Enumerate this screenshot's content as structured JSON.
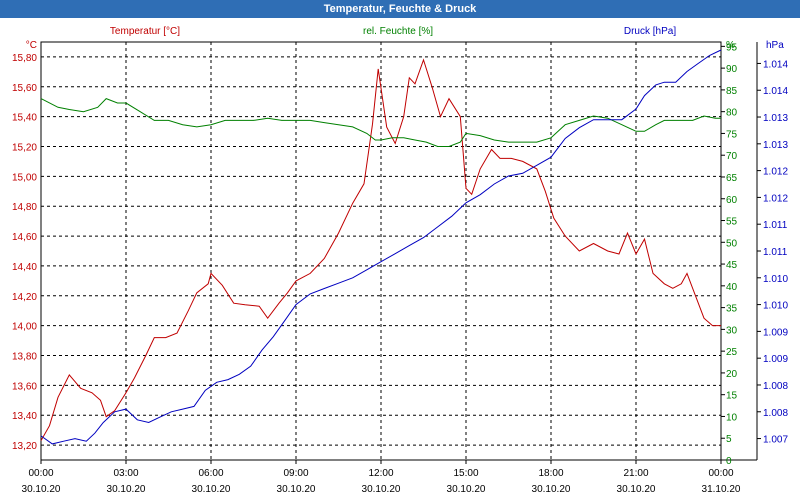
{
  "title": "Temperatur, Feuchte & Druck",
  "colors": {
    "temperature": "#c00000",
    "humidity": "#008000",
    "pressure": "#0000c0",
    "titlebar": "#2f6eb5"
  },
  "chart_data": {
    "type": "line",
    "title": "Temperatur, Feuchte & Druck",
    "legend": {
      "temperature": "Temperatur [°C]",
      "humidity": "rel. Feuchte [%]",
      "pressure": "Druck [hPa]"
    },
    "units": {
      "left": "°C",
      "right1": "%",
      "right2": "hPa"
    },
    "x_range_hours": [
      0,
      24
    ],
    "x_ticks": [
      {
        "t": 0,
        "time": "00:00",
        "date": "30.10.20"
      },
      {
        "t": 3,
        "time": "03:00",
        "date": "30.10.20"
      },
      {
        "t": 6,
        "time": "06:00",
        "date": "30.10.20"
      },
      {
        "t": 9,
        "time": "09:00",
        "date": "30.10.20"
      },
      {
        "t": 12,
        "time": "12:00",
        "date": "30.10.20"
      },
      {
        "t": 15,
        "time": "15:00",
        "date": "30.10.20"
      },
      {
        "t": 18,
        "time": "18:00",
        "date": "30.10.20"
      },
      {
        "t": 21,
        "time": "21:00",
        "date": "30.10.20"
      },
      {
        "t": 24,
        "time": "00:00",
        "date": "31.10.20"
      }
    ],
    "temp_axis": {
      "min": 13.1,
      "max": 15.9,
      "ticks": [
        13.2,
        13.4,
        13.6,
        13.8,
        14.0,
        14.2,
        14.4,
        14.6,
        14.8,
        15.0,
        15.2,
        15.4,
        15.6,
        15.8
      ],
      "labels": [
        "13,20",
        "13,40",
        "13,60",
        "13,80",
        "14,00",
        "14,20",
        "14,40",
        "14,60",
        "14,80",
        "15,00",
        "15,20",
        "15,40",
        "15,60",
        "15,80"
      ]
    },
    "hum_axis": {
      "min": 0,
      "max": 96,
      "ticks": [
        0,
        5,
        10,
        15,
        20,
        25,
        30,
        35,
        40,
        45,
        50,
        55,
        60,
        65,
        70,
        75,
        80,
        85,
        90,
        95
      ],
      "labels": [
        "0",
        "5",
        "10",
        "15",
        "20",
        "25",
        "30",
        "35",
        "40",
        "45",
        "50",
        "55",
        "60",
        "65",
        "70",
        "75",
        "80",
        "85",
        "90",
        "95"
      ]
    },
    "press_axis": {
      "min": 1006.6,
      "max": 1014.4,
      "ticks": [
        1007.0,
        1007.5,
        1008.0,
        1008.5,
        1009.0,
        1009.5,
        1010.0,
        1010.5,
        1011.0,
        1011.5,
        1012.0,
        1012.5,
        1013.0,
        1013.5,
        1014.0
      ],
      "labels": [
        "1.007",
        "1.008",
        "1.008",
        "1.009",
        "1.009",
        "1.010",
        "1.010",
        "1.011",
        "1.011",
        "1.012",
        "1.012",
        "1.013",
        "1.013",
        "1.014",
        "1.014"
      ]
    },
    "series": [
      {
        "name": "Temperatur [°C]",
        "key": "temperature",
        "axis": "temp",
        "data": [
          [
            0,
            13.23
          ],
          [
            0.3,
            13.33
          ],
          [
            0.6,
            13.52
          ],
          [
            1.0,
            13.67
          ],
          [
            1.4,
            13.58
          ],
          [
            1.8,
            13.55
          ],
          [
            2.1,
            13.5
          ],
          [
            2.3,
            13.39
          ],
          [
            2.6,
            13.43
          ],
          [
            3.0,
            13.55
          ],
          [
            3.3,
            13.65
          ],
          [
            3.7,
            13.8
          ],
          [
            4.0,
            13.92
          ],
          [
            4.4,
            13.92
          ],
          [
            4.8,
            13.95
          ],
          [
            5.2,
            14.1
          ],
          [
            5.5,
            14.22
          ],
          [
            5.9,
            14.28
          ],
          [
            6.0,
            14.35
          ],
          [
            6.4,
            14.27
          ],
          [
            6.8,
            14.15
          ],
          [
            7.2,
            14.14
          ],
          [
            7.7,
            14.13
          ],
          [
            8.0,
            14.05
          ],
          [
            8.4,
            14.15
          ],
          [
            8.7,
            14.22
          ],
          [
            9.0,
            14.3
          ],
          [
            9.5,
            14.35
          ],
          [
            10.0,
            14.45
          ],
          [
            10.5,
            14.62
          ],
          [
            11.0,
            14.82
          ],
          [
            11.4,
            14.95
          ],
          [
            11.7,
            15.35
          ],
          [
            11.9,
            15.72
          ],
          [
            12.2,
            15.33
          ],
          [
            12.5,
            15.22
          ],
          [
            12.8,
            15.4
          ],
          [
            13.0,
            15.66
          ],
          [
            13.2,
            15.62
          ],
          [
            13.5,
            15.78
          ],
          [
            13.8,
            15.6
          ],
          [
            14.1,
            15.4
          ],
          [
            14.4,
            15.52
          ],
          [
            14.8,
            15.4
          ],
          [
            15.0,
            14.92
          ],
          [
            15.2,
            14.88
          ],
          [
            15.5,
            15.05
          ],
          [
            15.9,
            15.18
          ],
          [
            16.2,
            15.12
          ],
          [
            16.6,
            15.12
          ],
          [
            17.0,
            15.1
          ],
          [
            17.5,
            15.05
          ],
          [
            17.8,
            14.9
          ],
          [
            18.1,
            14.72
          ],
          [
            18.5,
            14.6
          ],
          [
            19.0,
            14.5
          ],
          [
            19.5,
            14.55
          ],
          [
            20.0,
            14.5
          ],
          [
            20.4,
            14.48
          ],
          [
            20.7,
            14.62
          ],
          [
            21.0,
            14.48
          ],
          [
            21.3,
            14.58
          ],
          [
            21.6,
            14.35
          ],
          [
            22.0,
            14.28
          ],
          [
            22.3,
            14.25
          ],
          [
            22.6,
            14.28
          ],
          [
            22.8,
            14.35
          ],
          [
            23.1,
            14.2
          ],
          [
            23.4,
            14.05
          ],
          [
            23.7,
            14.0
          ],
          [
            24.0,
            14.0
          ]
        ]
      },
      {
        "name": "rel. Feuchte [%]",
        "key": "humidity",
        "axis": "hum",
        "data": [
          [
            0,
            83
          ],
          [
            0.6,
            81
          ],
          [
            1.0,
            80.5
          ],
          [
            1.5,
            80
          ],
          [
            2.0,
            81
          ],
          [
            2.3,
            83
          ],
          [
            2.7,
            82
          ],
          [
            3.0,
            82
          ],
          [
            3.5,
            80
          ],
          [
            4.0,
            78
          ],
          [
            4.5,
            78
          ],
          [
            5.0,
            77
          ],
          [
            5.5,
            76.5
          ],
          [
            6.0,
            77
          ],
          [
            6.5,
            78
          ],
          [
            7.0,
            78
          ],
          [
            7.5,
            78
          ],
          [
            8.0,
            78.5
          ],
          [
            8.5,
            78
          ],
          [
            9.0,
            78
          ],
          [
            9.5,
            78
          ],
          [
            10.0,
            77.5
          ],
          [
            10.5,
            77
          ],
          [
            11.0,
            76.5
          ],
          [
            11.5,
            75
          ],
          [
            11.8,
            73.5
          ],
          [
            12.0,
            73.5
          ],
          [
            12.4,
            74
          ],
          [
            12.8,
            74
          ],
          [
            13.2,
            73.5
          ],
          [
            13.6,
            73
          ],
          [
            14.0,
            72
          ],
          [
            14.4,
            72
          ],
          [
            14.8,
            73
          ],
          [
            15.0,
            75
          ],
          [
            15.5,
            74.5
          ],
          [
            16.0,
            73.5
          ],
          [
            16.5,
            73
          ],
          [
            17.0,
            73
          ],
          [
            17.5,
            73
          ],
          [
            18.0,
            74
          ],
          [
            18.5,
            77
          ],
          [
            19.0,
            78
          ],
          [
            19.5,
            79
          ],
          [
            20.0,
            78.5
          ],
          [
            20.5,
            77
          ],
          [
            21.0,
            75.5
          ],
          [
            21.3,
            75.5
          ],
          [
            21.7,
            77
          ],
          [
            22.0,
            78
          ],
          [
            22.5,
            78
          ],
          [
            23.0,
            78
          ],
          [
            23.4,
            79
          ],
          [
            23.8,
            78.5
          ],
          [
            24.0,
            78.5
          ]
        ]
      },
      {
        "name": "Druck [hPa]",
        "key": "pressure",
        "axis": "press",
        "data": [
          [
            0,
            1007.05
          ],
          [
            0.4,
            1006.9
          ],
          [
            0.8,
            1006.95
          ],
          [
            1.2,
            1007.0
          ],
          [
            1.6,
            1006.95
          ],
          [
            1.9,
            1007.1
          ],
          [
            2.2,
            1007.3
          ],
          [
            2.6,
            1007.5
          ],
          [
            3.0,
            1007.55
          ],
          [
            3.4,
            1007.35
          ],
          [
            3.8,
            1007.3
          ],
          [
            4.2,
            1007.4
          ],
          [
            4.6,
            1007.5
          ],
          [
            5.0,
            1007.55
          ],
          [
            5.4,
            1007.6
          ],
          [
            5.8,
            1007.9
          ],
          [
            6.2,
            1008.05
          ],
          [
            6.6,
            1008.1
          ],
          [
            7.0,
            1008.2
          ],
          [
            7.4,
            1008.35
          ],
          [
            7.8,
            1008.65
          ],
          [
            8.2,
            1008.9
          ],
          [
            8.6,
            1009.2
          ],
          [
            9.0,
            1009.5
          ],
          [
            9.5,
            1009.7
          ],
          [
            10.0,
            1009.8
          ],
          [
            10.5,
            1009.9
          ],
          [
            11.0,
            1010.0
          ],
          [
            11.5,
            1010.15
          ],
          [
            12.0,
            1010.3
          ],
          [
            12.5,
            1010.45
          ],
          [
            13.0,
            1010.6
          ],
          [
            13.5,
            1010.75
          ],
          [
            14.0,
            1010.95
          ],
          [
            14.5,
            1011.15
          ],
          [
            15.0,
            1011.4
          ],
          [
            15.5,
            1011.55
          ],
          [
            16.0,
            1011.75
          ],
          [
            16.5,
            1011.9
          ],
          [
            17.0,
            1011.95
          ],
          [
            17.5,
            1012.1
          ],
          [
            18.0,
            1012.25
          ],
          [
            18.5,
            1012.6
          ],
          [
            19.0,
            1012.8
          ],
          [
            19.5,
            1012.95
          ],
          [
            20.0,
            1012.95
          ],
          [
            20.5,
            1012.95
          ],
          [
            21.0,
            1013.15
          ],
          [
            21.3,
            1013.4
          ],
          [
            21.7,
            1013.6
          ],
          [
            22.0,
            1013.65
          ],
          [
            22.4,
            1013.65
          ],
          [
            22.8,
            1013.85
          ],
          [
            23.2,
            1014.0
          ],
          [
            23.6,
            1014.15
          ],
          [
            24.0,
            1014.25
          ]
        ]
      }
    ]
  }
}
